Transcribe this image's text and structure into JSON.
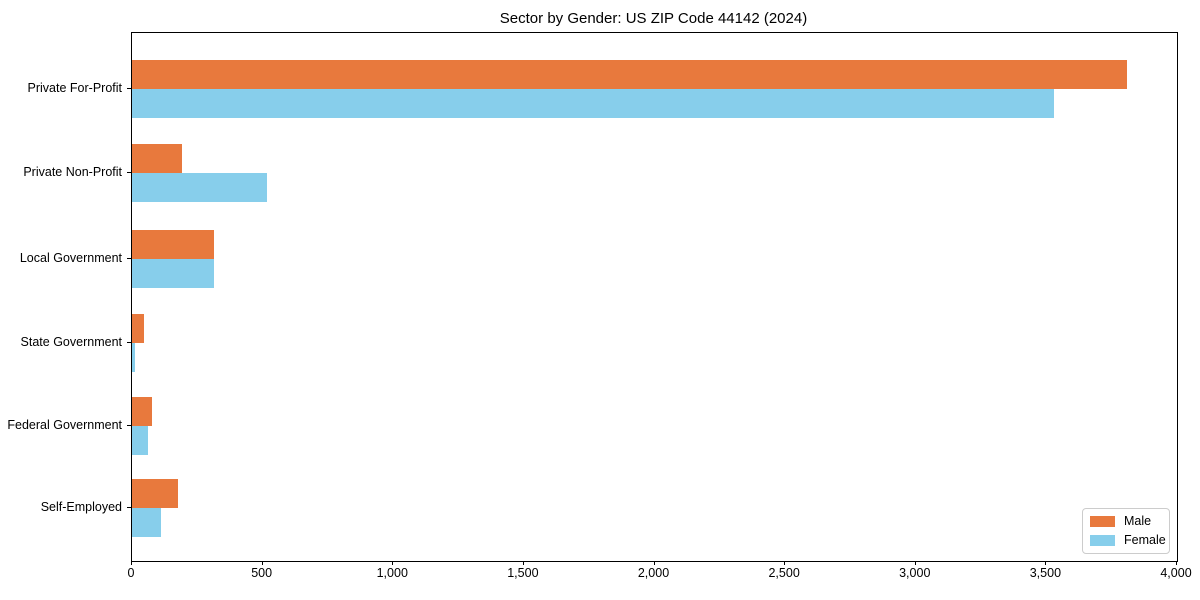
{
  "title": "Sector by Gender: US ZIP Code 44142 (2024)",
  "chart_data": {
    "type": "bar",
    "orientation": "horizontal",
    "title": "Sector by Gender: US ZIP Code 44142 (2024)",
    "categories": [
      "Private For-Profit",
      "Private Non-Profit",
      "Local Government",
      "State Government",
      "Federal Government",
      "Self-Employed"
    ],
    "series": [
      {
        "name": "Male",
        "color": "#e8793d",
        "values": [
          3810,
          190,
          315,
          47,
          78,
          177
        ]
      },
      {
        "name": "Female",
        "color": "#87ceeb",
        "values": [
          3530,
          515,
          313,
          13,
          62,
          110
        ]
      }
    ],
    "xlabel": "",
    "ylabel": "",
    "xlim": [
      0,
      4000
    ],
    "x_ticks": [
      0,
      500,
      1000,
      1500,
      2000,
      2500,
      3000,
      3500,
      4000
    ],
    "x_tick_labels": [
      "0",
      "500",
      "1,000",
      "1,500",
      "2,000",
      "2,500",
      "3,000",
      "3,500",
      "4,000"
    ],
    "grid": false,
    "legend_position": "lower right",
    "frame_color": "#000000",
    "background": "#ffffff"
  }
}
